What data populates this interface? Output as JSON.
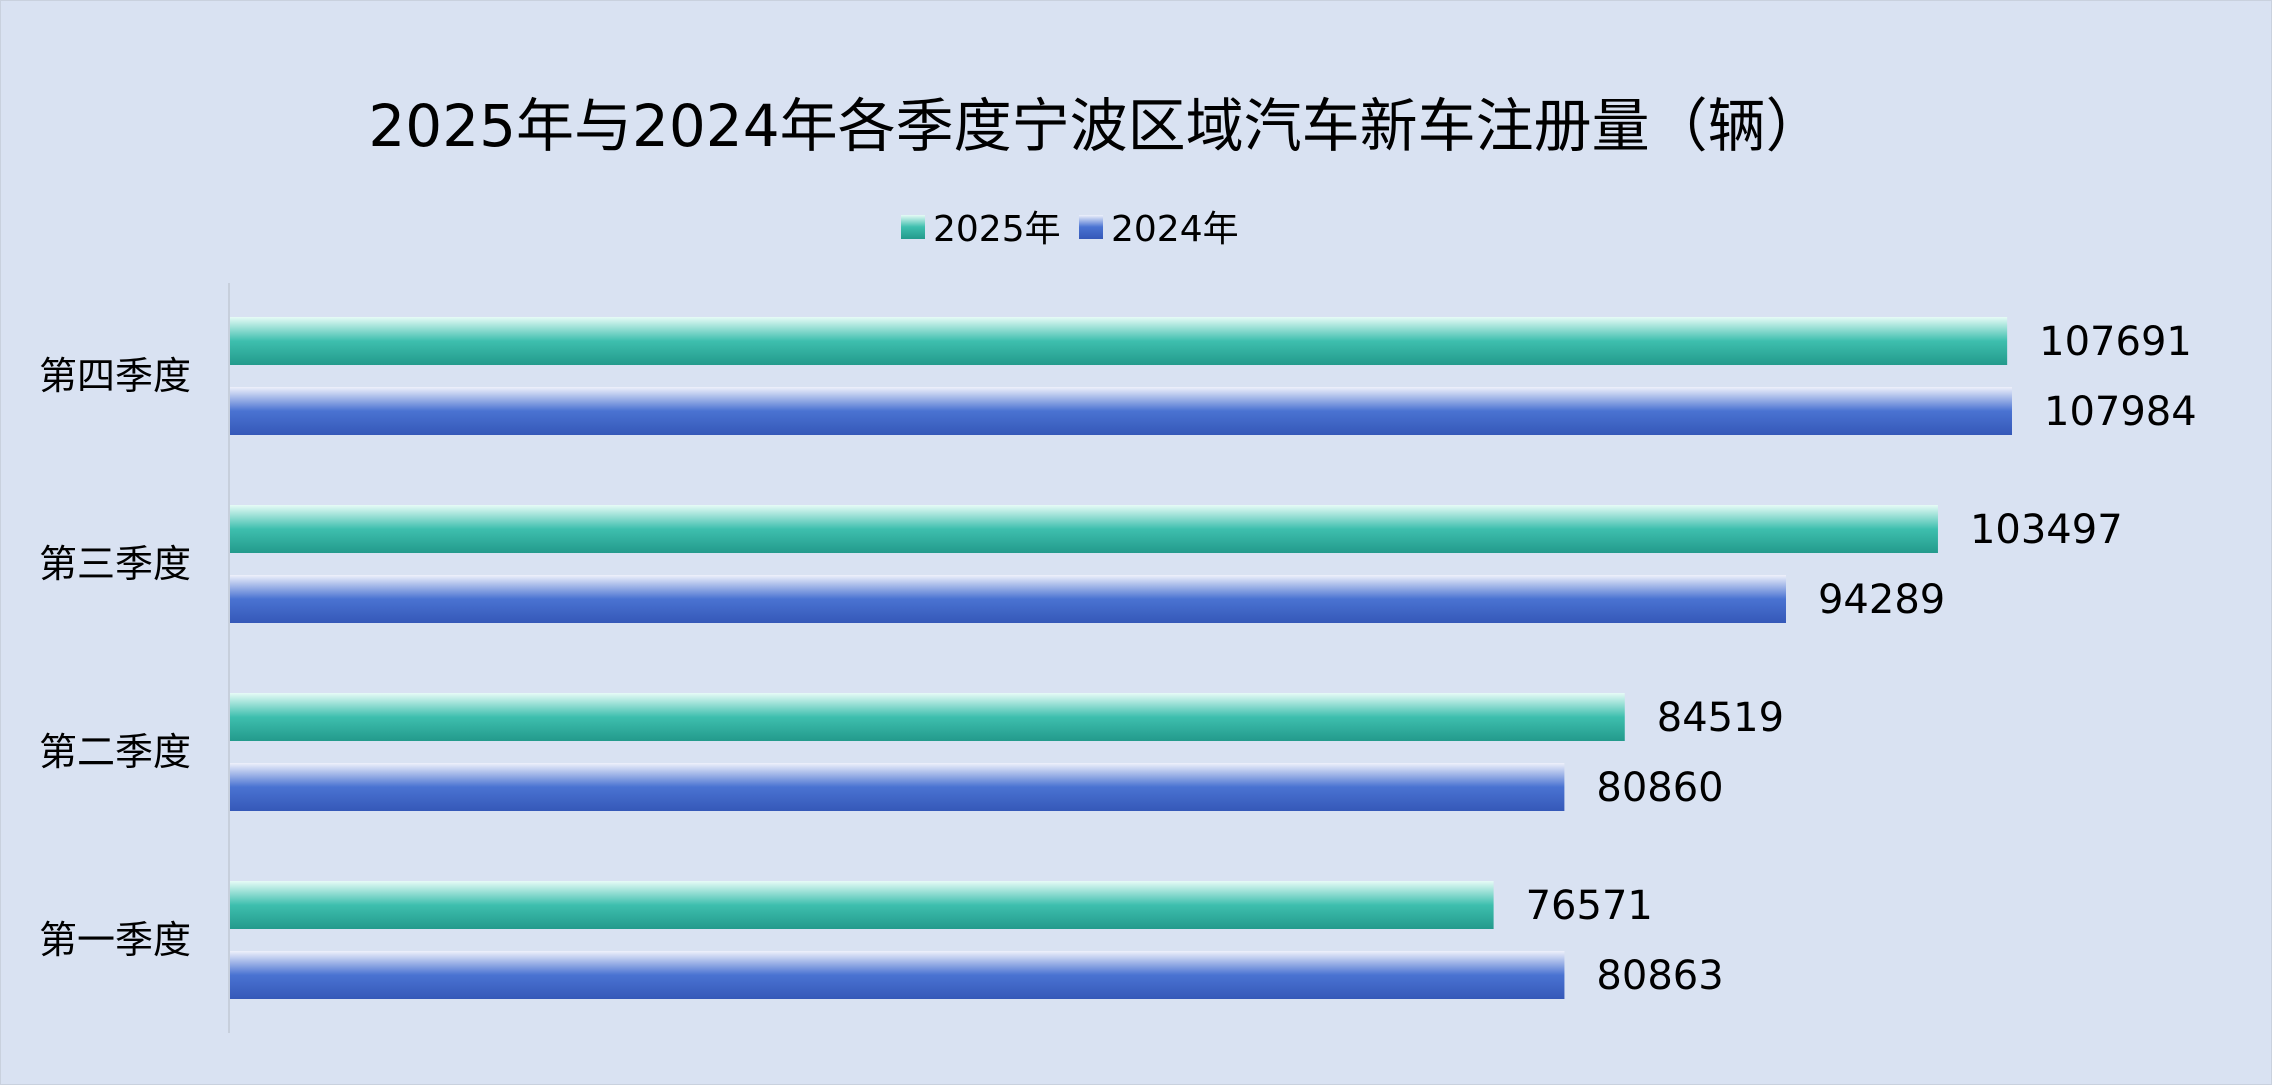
{
  "chart_data": {
    "type": "bar",
    "orientation": "horizontal",
    "title": "2025年与2024年各季度宁波区域汽车新车注册量（辆）",
    "categories": [
      "第四季度",
      "第三季度",
      "第二季度",
      "第一季度"
    ],
    "series": [
      {
        "name": "2025年",
        "color": "#2aa89a",
        "values": [
          107691,
          103497,
          84519,
          76571
        ]
      },
      {
        "name": "2024年",
        "color": "#3c63c4",
        "values": [
          107984,
          94289,
          80860,
          80863
        ]
      }
    ],
    "xlim": [
      0,
      110000
    ],
    "legend_position": "top",
    "grid": false,
    "data_labels": true
  }
}
